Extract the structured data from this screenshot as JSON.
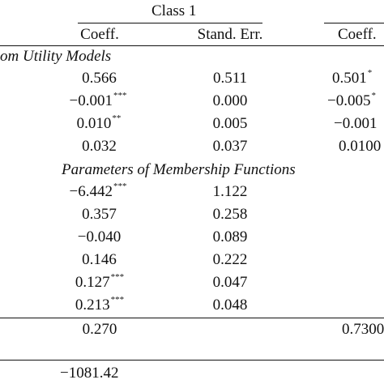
{
  "header": {
    "class_label": "Class 1",
    "col1": "Coeff.",
    "col2": "Stand. Err.",
    "col3": "Coeff."
  },
  "sections": {
    "utility_title": "om Utility Models",
    "membership_title": "Parameters of Membership Functions"
  },
  "utility_rows": [
    {
      "c1": "0.566",
      "c1_sig": "",
      "c2": "0.511",
      "c3": "0.501",
      "c3_sig": "*"
    },
    {
      "c1": "−0.001",
      "c1_sig": "***",
      "c2": "0.000",
      "c3": "−0.005",
      "c3_sig": "*"
    },
    {
      "c1": "0.010",
      "c1_sig": "**",
      "c2": "0.005",
      "c3": "−0.001",
      "c3_sig": ""
    },
    {
      "c1": "0.032",
      "c1_sig": "",
      "c2": "0.037",
      "c3": "0.0100",
      "c3_sig": ""
    }
  ],
  "membership_rows": [
    {
      "c1": "−6.442",
      "c1_sig": "***",
      "c2": "1.122"
    },
    {
      "c1": "0.357",
      "c1_sig": "",
      "c2": "0.258"
    },
    {
      "c1": "−0.040",
      "c1_sig": "",
      "c2": "0.089"
    },
    {
      "c1": "0.146",
      "c1_sig": "",
      "c2": "0.222"
    },
    {
      "c1": "0.127",
      "c1_sig": "***",
      "c2": "0.047"
    },
    {
      "c1": "0.213",
      "c1_sig": "***",
      "c2": "0.048"
    }
  ],
  "share_row": {
    "c1": "0.270",
    "c3": "0.7300"
  },
  "loglik_row": {
    "c1": "−1081.42"
  }
}
